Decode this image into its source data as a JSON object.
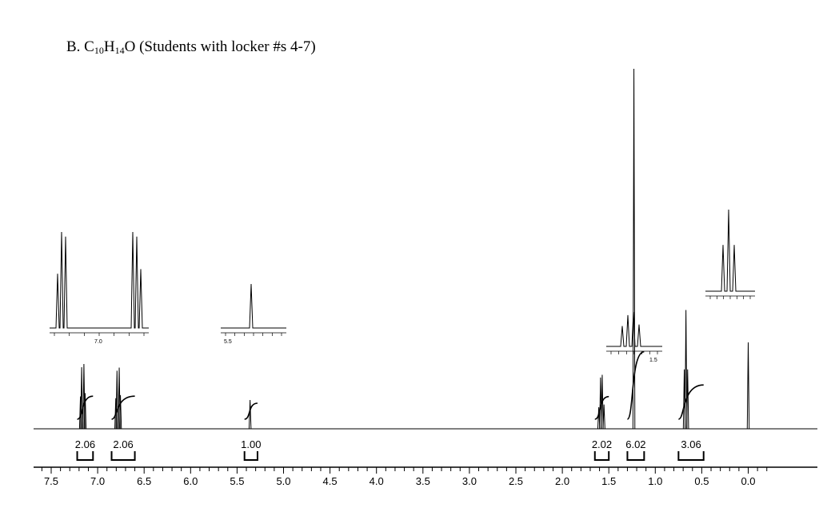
{
  "title": {
    "prefix": "B.  C",
    "c_count": "10",
    "h": "H",
    "h_count": "14",
    "o": "O",
    "suffix": " (Students with locker #s 4-7)"
  },
  "chart_data": {
    "type": "line",
    "title": "B.  C10H14O (Students with locker #s 4-7)",
    "xlabel": "",
    "ylabel": "",
    "xlim": [
      7.55,
      -0.2
    ],
    "x_axis_reversed": true,
    "x_ticks": [
      "7.5",
      "7.0",
      "6.5",
      "6.0",
      "5.5",
      "5.0",
      "4.5",
      "4.0",
      "3.5",
      "3.0",
      "2.5",
      "2.0",
      "1.5",
      "1.0",
      "0.5",
      "0.0"
    ],
    "peaks": [
      {
        "shift": 7.16,
        "shape": "doublet (aromatic)",
        "rel_height": 0.18
      },
      {
        "shift": 6.78,
        "shape": "doublet (aromatic)",
        "rel_height": 0.17
      },
      {
        "shift": 5.36,
        "shape": "broad singlet",
        "rel_height": 0.08
      },
      {
        "shift": 1.58,
        "shape": "quartet",
        "rel_height": 0.15
      },
      {
        "shift": 1.23,
        "shape": "singlet",
        "rel_height": 1.0
      },
      {
        "shift": 0.67,
        "shape": "triplet",
        "rel_height": 0.33
      },
      {
        "shift": 0.0,
        "shape": "singlet (TMS)",
        "rel_height": 0.24
      }
    ],
    "integrations": [
      {
        "label": "2.06",
        "from": 7.22,
        "to": 7.05
      },
      {
        "label": "2.06",
        "from": 6.85,
        "to": 6.6
      },
      {
        "label": "1.00",
        "from": 5.42,
        "to": 5.28
      },
      {
        "label": "2.02",
        "from": 1.65,
        "to": 1.5
      },
      {
        "label": "6.02",
        "from": 1.3,
        "to": 1.12
      },
      {
        "label": "3.06",
        "from": 0.75,
        "to": 0.48
      }
    ],
    "insets": [
      {
        "name": "aromatic-inset",
        "tick_label": "7.0"
      },
      {
        "name": "oh-inset",
        "tick_label": "5.5"
      },
      {
        "name": "ch2-inset",
        "tick_label": "1.5"
      },
      {
        "name": "ch3-inset",
        "tick_label": ""
      }
    ],
    "grid": false,
    "legend": "none"
  }
}
